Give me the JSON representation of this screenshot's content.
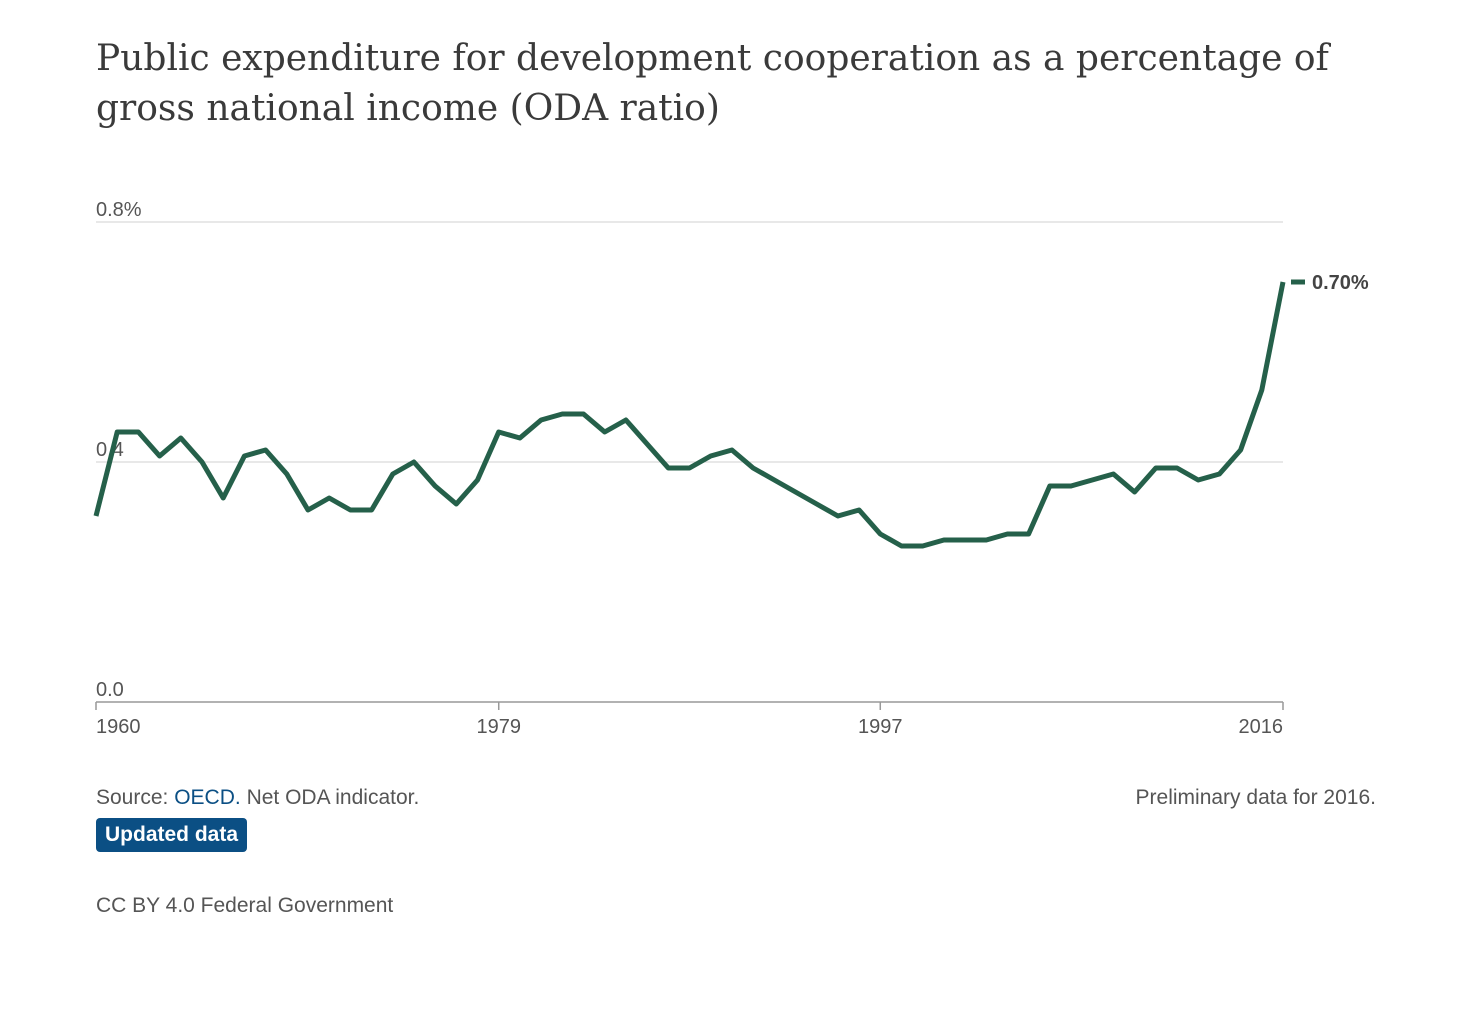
{
  "title": "Public expenditure for development cooperation as a percentage of gross national income (ODA ratio)",
  "chart_data": {
    "type": "line",
    "x": [
      1960,
      1961,
      1962,
      1963,
      1964,
      1965,
      1966,
      1967,
      1968,
      1969,
      1970,
      1971,
      1972,
      1973,
      1974,
      1975,
      1976,
      1977,
      1978,
      1979,
      1980,
      1981,
      1982,
      1983,
      1984,
      1985,
      1986,
      1987,
      1988,
      1989,
      1990,
      1991,
      1992,
      1993,
      1994,
      1995,
      1996,
      1997,
      1998,
      1999,
      2000,
      2001,
      2002,
      2003,
      2004,
      2005,
      2006,
      2007,
      2008,
      2009,
      2010,
      2011,
      2012,
      2013,
      2014,
      2015,
      2016
    ],
    "series": [
      {
        "values": [
          0.31,
          0.45,
          0.45,
          0.41,
          0.44,
          0.4,
          0.34,
          0.41,
          0.42,
          0.38,
          0.32,
          0.34,
          0.32,
          0.32,
          0.38,
          0.4,
          0.36,
          0.33,
          0.37,
          0.45,
          0.44,
          0.47,
          0.48,
          0.48,
          0.45,
          0.47,
          0.43,
          0.39,
          0.39,
          0.41,
          0.42,
          0.39,
          0.37,
          0.35,
          0.33,
          0.31,
          0.32,
          0.28,
          0.26,
          0.26,
          0.27,
          0.27,
          0.27,
          0.28,
          0.28,
          0.36,
          0.36,
          0.37,
          0.38,
          0.35,
          0.39,
          0.39,
          0.37,
          0.38,
          0.42,
          0.52,
          0.7
        ]
      }
    ],
    "ylim": [
      0,
      0.8
    ],
    "y_tick_labels": [
      "0.0",
      "0.4",
      "0.8%"
    ],
    "y_tick_values": [
      0,
      0.4,
      0.8
    ],
    "x_tick_labels": [
      "1960",
      "1979",
      "1997",
      "2016"
    ],
    "x_tick_values": [
      1960,
      1979,
      1997,
      2016
    ],
    "end_label": "0.70%",
    "line_color": "#25604a",
    "grid": true
  },
  "footer": {
    "source_prefix": "Source: ",
    "source_link": "OECD.",
    "source_suffix": " Net ODA indicator.",
    "note": "Preliminary data for 2016.",
    "badge": "Updated data",
    "license": "CC BY 4.0 Federal Government"
  }
}
